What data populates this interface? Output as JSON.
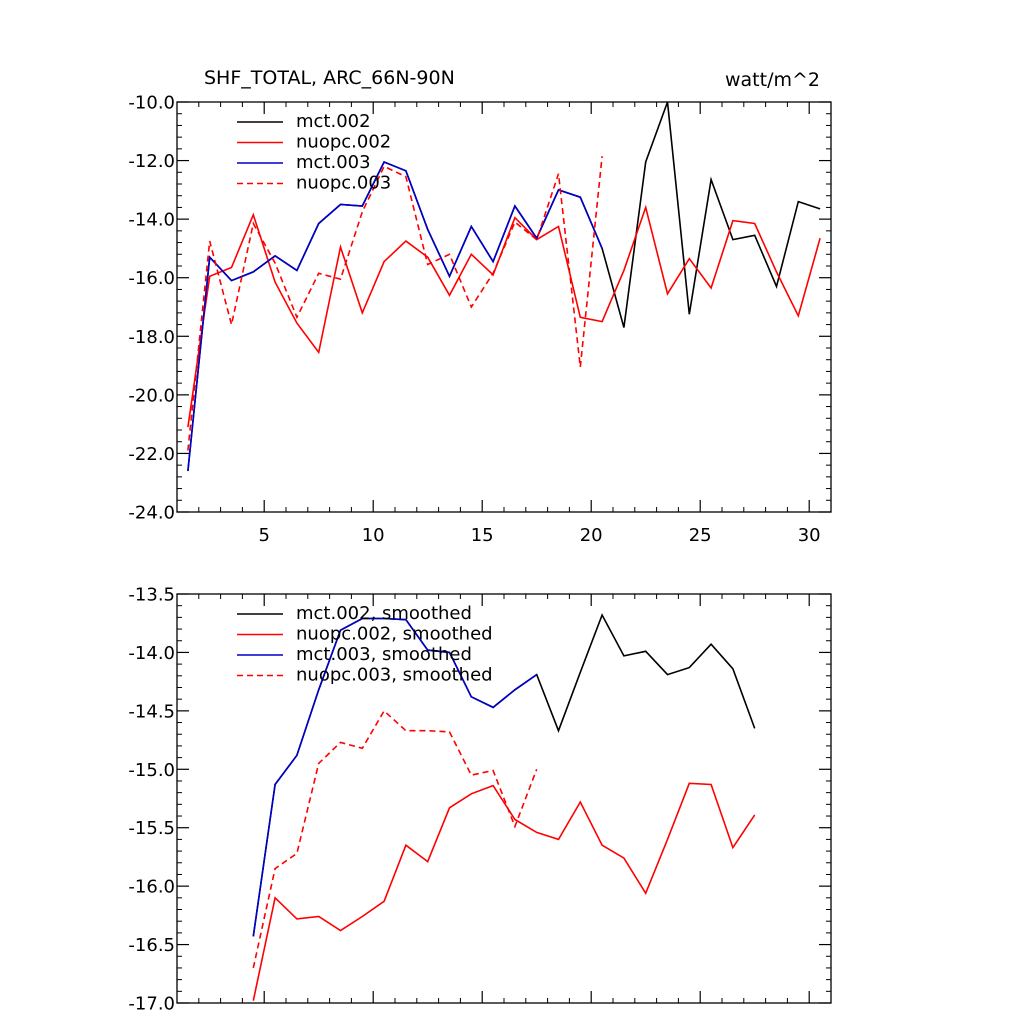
{
  "colors": {
    "black": "#000000",
    "red": "#ff0000",
    "blue": "#0000cc"
  },
  "chart_data": [
    {
      "type": "line",
      "title": "SHF_TOTAL, ARC_66N-90N",
      "units": "watt/m^2",
      "xlabel": "",
      "ylabel": "",
      "xlim": [
        1,
        31
      ],
      "ylim": [
        -24.0,
        -10.0
      ],
      "xticks": [
        5,
        10,
        15,
        20,
        25,
        30
      ],
      "xtick_labels": [
        "5",
        "10",
        "15",
        "20",
        "25",
        "30"
      ],
      "yticks": [
        -24.0,
        -22.0,
        -20.0,
        -18.0,
        -16.0,
        -14.0,
        -12.0,
        -10.0
      ],
      "ytick_labels": [
        "-24.0",
        "-22.0",
        "-20.0",
        "-18.0",
        "-16.0",
        "-14.0",
        "-12.0",
        "-10.0"
      ],
      "grid": false,
      "legend_position": "top-left",
      "series": [
        {
          "name": "mct.002",
          "color": "#000000",
          "dash": "solid",
          "x": [
            1.5,
            2.5,
            3.5,
            4.5,
            5.5,
            6.5,
            7.5,
            8.5,
            9.5,
            10.5,
            11.5,
            12.5,
            13.5,
            14.5,
            15.5,
            16.5,
            17.5,
            18.5,
            19.5,
            20.5,
            21.5,
            22.5,
            23.5,
            24.5,
            25.5,
            26.5,
            27.5,
            28.5,
            29.5,
            30.5
          ],
          "values": [
            -22.6,
            -15.3,
            -16.1,
            -15.8,
            -15.25,
            -15.75,
            -14.15,
            -13.5,
            -13.55,
            -12.05,
            -12.35,
            -14.35,
            -15.95,
            -14.25,
            -15.45,
            -13.55,
            -14.65,
            -13.0,
            -13.25,
            -15.0,
            -17.7,
            -12.05,
            -10.0,
            -17.25,
            -12.65,
            -14.7,
            -14.55,
            -16.3,
            -13.4,
            -13.65
          ]
        },
        {
          "name": "nuopc.002",
          "color": "#ff0000",
          "dash": "solid",
          "x": [
            1.5,
            2.5,
            3.5,
            4.5,
            5.5,
            6.5,
            7.5,
            8.5,
            9.5,
            10.5,
            11.5,
            12.5,
            13.5,
            14.5,
            15.5,
            16.5,
            17.5,
            18.5,
            19.5,
            20.5,
            21.5,
            22.5,
            23.5,
            24.5,
            25.5,
            26.5,
            27.5,
            28.5,
            29.5,
            30.5
          ],
          "values": [
            -21.1,
            -15.95,
            -15.65,
            -13.85,
            -16.15,
            -17.55,
            -18.55,
            -14.95,
            -17.2,
            -15.45,
            -14.75,
            -15.3,
            -16.6,
            -15.2,
            -15.9,
            -13.95,
            -14.7,
            -14.25,
            -17.35,
            -17.5,
            -15.75,
            -13.6,
            -16.55,
            -15.35,
            -16.35,
            -14.05,
            -14.15,
            -15.8,
            -17.3,
            -14.65
          ]
        },
        {
          "name": "mct.003",
          "color": "#0000cc",
          "dash": "solid",
          "x": [
            1.5,
            2.5,
            3.5,
            4.5,
            5.5,
            6.5,
            7.5,
            8.5,
            9.5,
            10.5,
            11.5,
            12.5,
            13.5,
            14.5,
            15.5,
            16.5,
            17.5,
            18.5,
            19.5,
            20.5
          ],
          "values": [
            -22.6,
            -15.3,
            -16.1,
            -15.8,
            -15.25,
            -15.75,
            -14.15,
            -13.5,
            -13.55,
            -12.05,
            -12.35,
            -14.35,
            -15.95,
            -14.25,
            -15.45,
            -13.55,
            -14.65,
            -13.0,
            -13.25,
            -15.0
          ]
        },
        {
          "name": "nuopc.003",
          "color": "#ff0000",
          "dash": "dashed",
          "x": [
            1.5,
            2.5,
            3.5,
            4.5,
            5.5,
            6.5,
            7.5,
            8.5,
            9.5,
            10.5,
            11.5,
            12.5,
            13.5,
            14.5,
            15.5,
            16.5,
            17.5,
            18.5,
            19.5,
            20.5
          ],
          "values": [
            -21.9,
            -14.75,
            -17.6,
            -14.15,
            -15.5,
            -17.35,
            -15.85,
            -16.05,
            -13.75,
            -12.2,
            -12.55,
            -15.55,
            -15.2,
            -17.0,
            -15.85,
            -14.1,
            -14.7,
            -12.45,
            -19.05,
            -11.85
          ]
        }
      ]
    },
    {
      "type": "line",
      "title": "",
      "xlabel": "",
      "ylabel": "",
      "xlim": [
        1,
        31
      ],
      "ylim": [
        -17.0,
        -13.5
      ],
      "xticks": [
        5,
        10,
        15,
        20,
        25,
        30
      ],
      "xtick_labels": [],
      "yticks": [
        -17.0,
        -16.5,
        -16.0,
        -15.5,
        -15.0,
        -14.5,
        -14.0,
        -13.5
      ],
      "ytick_labels": [
        "-17.0",
        "-16.5",
        "-16.0",
        "-15.5",
        "-15.0",
        "-14.5",
        "-14.0",
        "-13.5"
      ],
      "grid": false,
      "legend_position": "top-left",
      "series": [
        {
          "name": "mct.002, smoothed",
          "color": "#000000",
          "dash": "solid",
          "x": [
            4.5,
            5.5,
            6.5,
            7.5,
            8.5,
            9.5,
            10.5,
            11.5,
            12.5,
            13.5,
            14.5,
            15.5,
            16.5,
            17.5,
            18.5,
            19.5,
            20.5,
            21.5,
            22.5,
            23.5,
            24.5,
            25.5,
            26.5,
            27.5
          ],
          "values": [
            -16.43,
            -15.13,
            -14.88,
            -14.32,
            -13.81,
            -13.71,
            -13.71,
            -13.72,
            -13.98,
            -14.0,
            -14.38,
            -14.47,
            -14.32,
            -14.19,
            -14.67,
            -14.17,
            -13.68,
            -14.03,
            -13.99,
            -14.19,
            -14.13,
            -13.93,
            -14.14,
            -14.65
          ]
        },
        {
          "name": "nuopc.002, smoothed",
          "color": "#ff0000",
          "dash": "solid",
          "x": [
            4.5,
            5.5,
            6.5,
            7.5,
            8.5,
            9.5,
            10.5,
            11.5,
            12.5,
            13.5,
            14.5,
            15.5,
            16.5,
            17.5,
            18.5,
            19.5,
            20.5,
            21.5,
            22.5,
            23.5,
            24.5,
            25.5,
            26.5,
            27.5
          ],
          "values": [
            -16.98,
            -16.1,
            -16.28,
            -16.26,
            -16.38,
            -16.26,
            -16.13,
            -15.65,
            -15.79,
            -15.33,
            -15.21,
            -15.14,
            -15.43,
            -15.54,
            -15.6,
            -15.28,
            -15.65,
            -15.76,
            -16.06,
            -15.6,
            -15.12,
            -15.13,
            -15.67,
            -15.39
          ]
        },
        {
          "name": "mct.003, smoothed",
          "color": "#0000cc",
          "dash": "solid",
          "x": [
            4.5,
            5.5,
            6.5,
            7.5,
            8.5,
            9.5,
            10.5,
            11.5,
            12.5,
            13.5,
            14.5,
            15.5,
            16.5,
            17.5
          ],
          "values": [
            -16.43,
            -15.13,
            -14.88,
            -14.32,
            -13.81,
            -13.71,
            -13.71,
            -13.72,
            -13.98,
            -14.0,
            -14.38,
            -14.47,
            -14.32,
            -14.19
          ]
        },
        {
          "name": "nuopc.003, smoothed",
          "color": "#ff0000",
          "dash": "dashed",
          "x": [
            4.5,
            5.5,
            6.5,
            7.5,
            8.5,
            9.5,
            10.5,
            11.5,
            12.5,
            13.5,
            14.5,
            15.5,
            16.5,
            17.5
          ],
          "values": [
            -16.7,
            -15.85,
            -15.72,
            -14.95,
            -14.77,
            -14.82,
            -14.5,
            -14.67,
            -14.67,
            -14.68,
            -15.05,
            -15.01,
            -15.49,
            -15.0
          ]
        }
      ]
    }
  ]
}
